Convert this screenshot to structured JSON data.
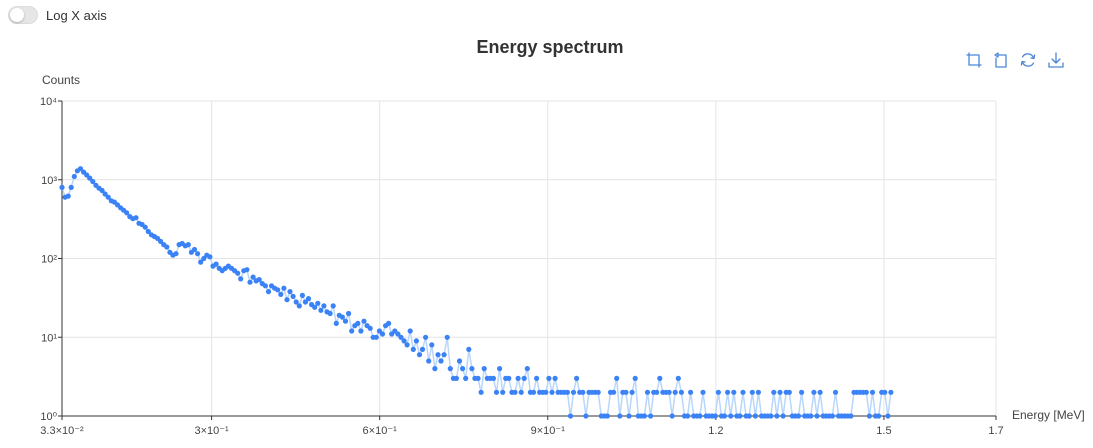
{
  "controls": {
    "log_x_label": "Log X axis",
    "log_x_enabled": false
  },
  "colors": {
    "series": "#3b82f6",
    "line": "#b9d6fb",
    "grid": "#e4e4e4",
    "axis": "#333333",
    "toolbar": "#4a86d8"
  },
  "toolbar": {
    "icons": [
      "zoom-icon",
      "zoom-reset-icon",
      "restore-icon",
      "download-icon"
    ]
  },
  "chart_data": {
    "type": "scatter",
    "title": "Energy spectrum",
    "xlabel": "Energy [MeV]",
    "ylabel": "Counts",
    "x_range": [
      0.033,
      1.7
    ],
    "y_scale": "log",
    "y_range": [
      1,
      10000
    ],
    "x_ticks": [
      {
        "value": 0.033,
        "label": "3.3×10⁻²"
      },
      {
        "value": 0.3,
        "label": "3×10⁻¹"
      },
      {
        "value": 0.6,
        "label": "6×10⁻¹"
      },
      {
        "value": 0.9,
        "label": "9×10⁻¹"
      },
      {
        "value": 1.2,
        "label": "1.2"
      },
      {
        "value": 1.5,
        "label": "1.5"
      },
      {
        "value": 1.7,
        "label": "1.7"
      }
    ],
    "y_ticks": [
      {
        "value": 1,
        "label": "10⁰"
      },
      {
        "value": 10,
        "label": "10¹"
      },
      {
        "value": 100,
        "label": "10²"
      },
      {
        "value": 1000,
        "label": "10³"
      },
      {
        "value": 10000,
        "label": "10⁴"
      }
    ],
    "grid": true,
    "series": [
      {
        "x_start": 0.033,
        "x_step": 0.0055,
        "values": [
          800,
          600,
          620,
          800,
          1100,
          1300,
          1380,
          1250,
          1150,
          1050,
          950,
          850,
          780,
          730,
          660,
          600,
          540,
          520,
          480,
          440,
          410,
          380,
          340,
          320,
          330,
          280,
          270,
          250,
          220,
          200,
          190,
          180,
          165,
          150,
          140,
          120,
          110,
          115,
          150,
          155,
          145,
          150,
          120,
          130,
          115,
          90,
          100,
          110,
          105,
          80,
          85,
          75,
          70,
          75,
          80,
          75,
          70,
          65,
          55,
          70,
          72,
          50,
          58,
          52,
          54,
          48,
          45,
          38,
          45,
          42,
          40,
          35,
          42,
          30,
          38,
          33,
          28,
          25,
          34,
          28,
          31,
          26,
          24,
          27,
          22,
          25,
          21,
          20,
          25,
          15,
          19,
          18,
          16,
          20,
          12,
          14,
          15,
          12,
          16,
          14,
          13,
          10,
          10,
          12,
          11,
          14,
          15,
          11,
          12,
          11,
          10,
          9,
          8,
          12,
          7,
          9,
          6,
          7,
          10,
          5,
          8,
          4,
          6,
          5,
          6,
          10,
          4,
          3,
          3,
          5,
          4,
          3,
          7,
          4,
          3,
          3,
          2,
          4,
          3,
          3,
          3,
          2,
          4,
          2,
          3,
          3,
          2,
          2,
          3,
          2,
          3,
          4,
          2,
          2,
          3,
          2,
          2,
          2,
          3,
          2,
          3,
          2,
          2,
          2,
          2,
          1,
          2,
          3,
          2,
          2,
          1,
          2,
          2,
          2,
          2,
          1,
          1,
          1,
          2,
          2,
          3,
          1,
          2,
          2,
          1,
          2,
          3,
          1,
          1,
          1,
          2,
          1,
          2,
          2,
          3,
          2,
          2,
          2,
          1,
          2,
          3,
          2,
          1,
          1,
          2,
          1,
          1,
          1,
          2,
          1,
          1,
          1,
          1,
          2,
          1,
          1,
          2,
          1,
          2,
          1,
          1,
          2,
          1,
          1,
          2,
          1,
          2,
          1,
          1,
          1,
          1,
          2,
          1,
          2,
          1,
          2,
          2,
          1,
          1,
          1,
          2,
          1,
          1,
          1,
          2,
          1,
          2,
          1,
          1,
          1,
          1,
          2,
          1,
          1,
          1,
          1,
          1,
          2,
          2,
          2,
          2,
          2,
          1,
          2,
          1,
          1,
          2,
          2,
          1,
          2
        ]
      }
    ]
  }
}
